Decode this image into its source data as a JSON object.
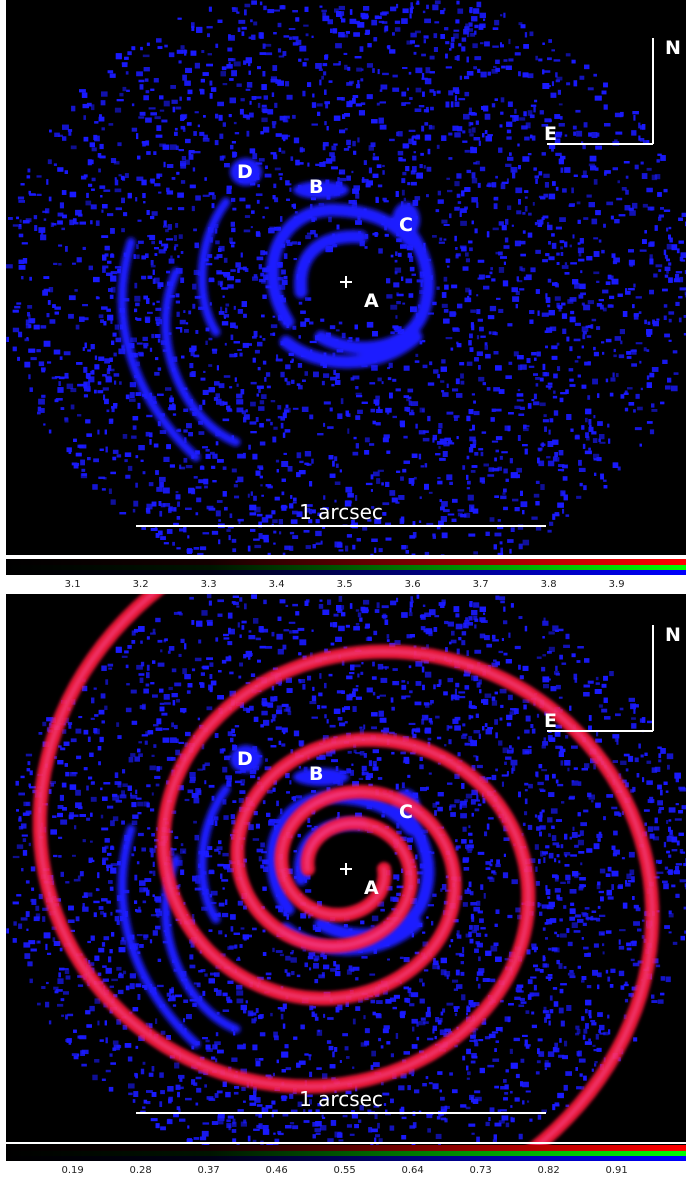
{
  "panels": [
    {
      "name": "top",
      "labels": {
        "A": "A",
        "B": "B",
        "C": "C",
        "D": "D"
      },
      "compass": {
        "north": "N",
        "east": "E"
      },
      "scale_bar": "1 arcsec",
      "colorbar_ticks": [
        "3.1",
        "3.2",
        "3.3",
        "3.4",
        "3.5",
        "3.6",
        "3.7",
        "3.8",
        "3.9"
      ],
      "spiral_overlay": false
    },
    {
      "name": "bottom",
      "labels": {
        "A": "A",
        "B": "B",
        "C": "C",
        "D": "D"
      },
      "compass": {
        "north": "N",
        "east": "E"
      },
      "scale_bar": "1 arcsec",
      "colorbar_ticks": [
        "0.19",
        "0.28",
        "0.37",
        "0.46",
        "0.55",
        "0.64",
        "0.73",
        "0.82",
        "0.91"
      ],
      "spiral_overlay": true
    }
  ],
  "colors": {
    "background": "#000000",
    "emission": "#1a1aff",
    "spiral_model": "#ff1a3a",
    "annotation": "#ffffff"
  }
}
